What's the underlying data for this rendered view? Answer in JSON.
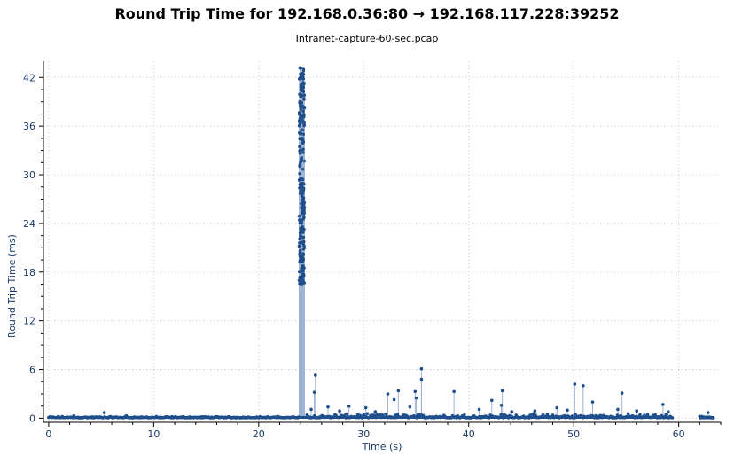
{
  "chart_data": {
    "type": "scatter",
    "title": "Round Trip Time for 192.168.0.36:80 → 192.168.117.228:39252",
    "subtitle": "Intranet-capture-60-sec.pcap",
    "xlabel": "Time (s)",
    "ylabel": "Round Trip Time (ms)",
    "xlim": [
      -0.5,
      64
    ],
    "ylim": [
      -0.5,
      44
    ],
    "xticks": [
      0,
      10,
      20,
      30,
      40,
      50,
      60
    ],
    "yticks": [
      0,
      6,
      12,
      18,
      24,
      30,
      36,
      42
    ],
    "grid": true,
    "series_color": "#1f4e8c",
    "stem_color": "#9fb4d6",
    "series": [
      {
        "segments": [
          {
            "x_start": 0.0,
            "x_end": 23.8,
            "count": 240,
            "y_min": 0.05,
            "y_max": 0.25
          },
          {
            "x_start": 24.6,
            "x_end": 59.4,
            "count": 340,
            "y_min": 0.05,
            "y_max": 0.6
          },
          {
            "x_start": 62.0,
            "x_end": 63.3,
            "count": 18,
            "y_min": 0.05,
            "y_max": 0.3
          }
        ],
        "burst": {
          "x_start": 23.85,
          "x_end": 24.35,
          "count": 230,
          "y_min": 16.5,
          "y_max": 43.3
        },
        "spikes": [
          {
            "x": 2.4,
            "y": 0.3
          },
          {
            "x": 5.3,
            "y": 0.7
          },
          {
            "x": 7.4,
            "y": 0.3
          },
          {
            "x": 25.4,
            "y": 5.3
          },
          {
            "x": 25.3,
            "y": 3.2
          },
          {
            "x": 25.0,
            "y": 1.1
          },
          {
            "x": 26.6,
            "y": 1.4
          },
          {
            "x": 27.7,
            "y": 0.9
          },
          {
            "x": 28.6,
            "y": 1.5
          },
          {
            "x": 30.2,
            "y": 1.3
          },
          {
            "x": 31.1,
            "y": 0.8
          },
          {
            "x": 32.3,
            "y": 3.0
          },
          {
            "x": 32.9,
            "y": 2.3
          },
          {
            "x": 33.3,
            "y": 3.4
          },
          {
            "x": 34.4,
            "y": 1.4
          },
          {
            "x": 34.9,
            "y": 3.3
          },
          {
            "x": 35.0,
            "y": 2.5
          },
          {
            "x": 35.5,
            "y": 6.1
          },
          {
            "x": 35.5,
            "y": 4.8
          },
          {
            "x": 38.6,
            "y": 3.3
          },
          {
            "x": 41.0,
            "y": 1.1
          },
          {
            "x": 42.2,
            "y": 2.2
          },
          {
            "x": 43.2,
            "y": 3.4
          },
          {
            "x": 43.1,
            "y": 1.6
          },
          {
            "x": 44.1,
            "y": 0.8
          },
          {
            "x": 46.3,
            "y": 0.9
          },
          {
            "x": 48.4,
            "y": 1.3
          },
          {
            "x": 49.4,
            "y": 1.0
          },
          {
            "x": 50.1,
            "y": 4.2
          },
          {
            "x": 50.9,
            "y": 4.0
          },
          {
            "x": 51.8,
            "y": 2.0
          },
          {
            "x": 54.2,
            "y": 1.1
          },
          {
            "x": 54.6,
            "y": 3.1
          },
          {
            "x": 56.0,
            "y": 0.9
          },
          {
            "x": 58.5,
            "y": 1.7
          },
          {
            "x": 59.0,
            "y": 0.8
          },
          {
            "x": 62.8,
            "y": 0.7
          }
        ]
      }
    ]
  }
}
